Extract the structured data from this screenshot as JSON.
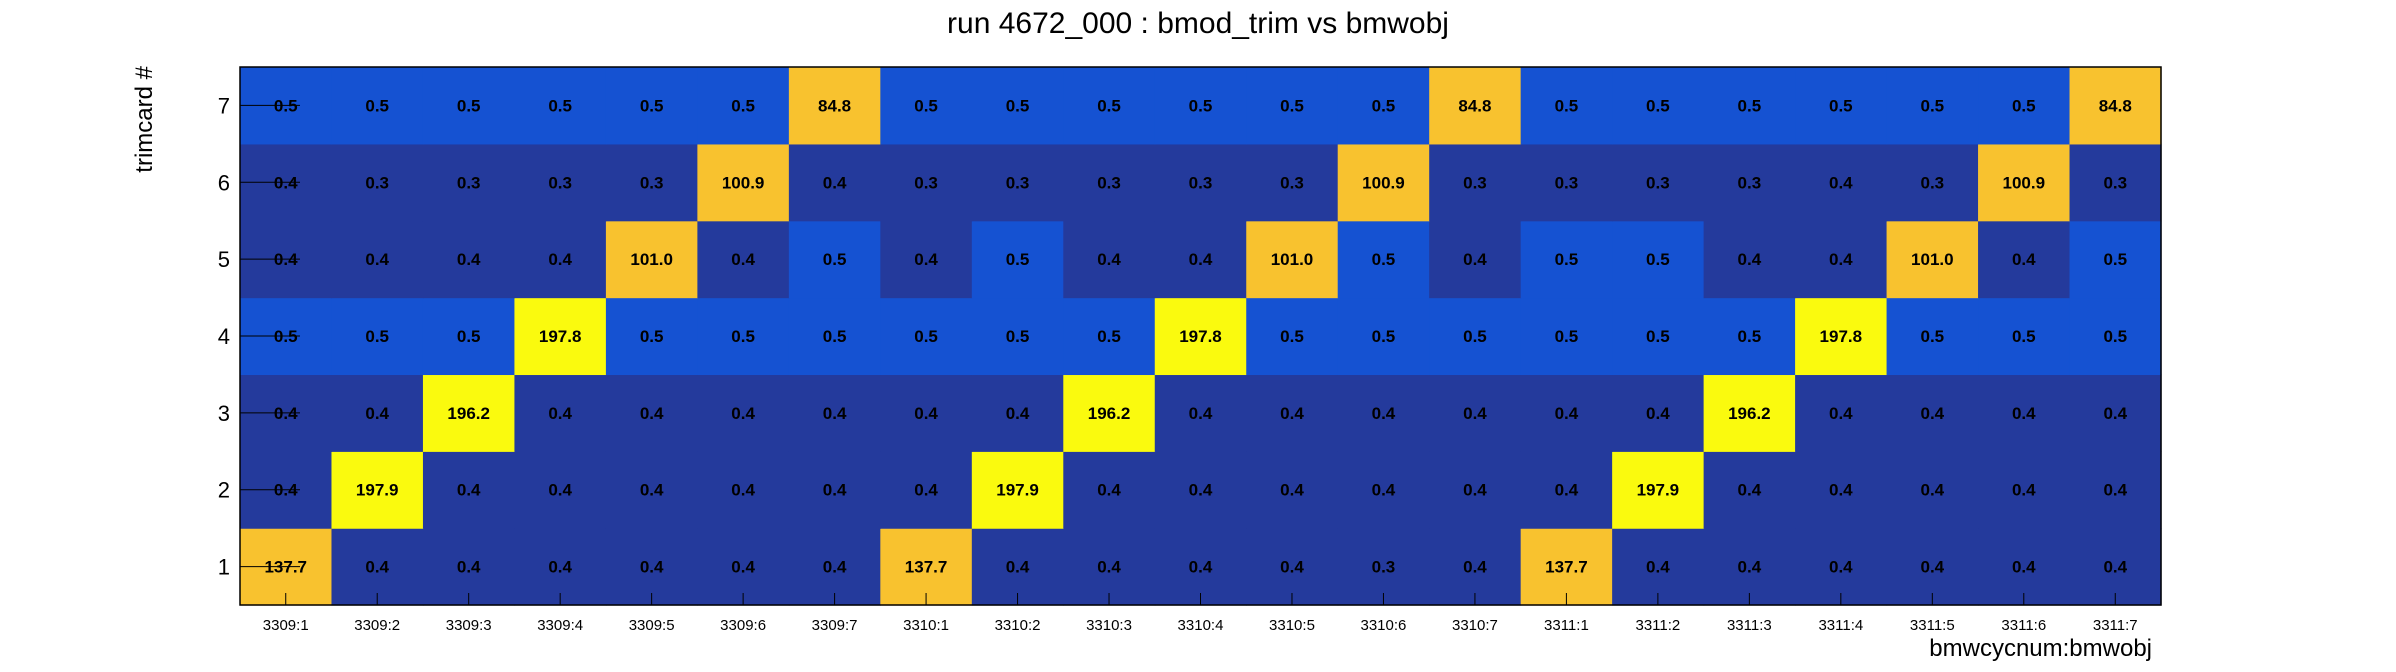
{
  "chart_data": {
    "type": "heatmap",
    "title": "run 4672_000 : bmod_trim vs bmwobj",
    "xlabel": "bmwcycnum:bmwobj",
    "ylabel": "trimcard #",
    "x_categories": [
      "3309:1",
      "3309:2",
      "3309:3",
      "3309:4",
      "3309:5",
      "3309:6",
      "3309:7",
      "3310:1",
      "3310:2",
      "3310:3",
      "3310:4",
      "3310:5",
      "3310:6",
      "3310:7",
      "3311:1",
      "3311:2",
      "3311:3",
      "3311:4",
      "3311:5",
      "3311:6",
      "3311:7"
    ],
    "y_categories": [
      "1",
      "2",
      "3",
      "4",
      "5",
      "6",
      "7"
    ],
    "values": [
      [
        "137.7",
        "0.4",
        "0.4",
        "0.4",
        "0.4",
        "0.4",
        "0.4",
        "137.7",
        "0.4",
        "0.4",
        "0.4",
        "0.4",
        "0.3",
        "0.4",
        "137.7",
        "0.4",
        "0.4",
        "0.4",
        "0.4",
        "0.4",
        "0.4"
      ],
      [
        "0.4",
        "197.9",
        "0.4",
        "0.4",
        "0.4",
        "0.4",
        "0.4",
        "0.4",
        "197.9",
        "0.4",
        "0.4",
        "0.4",
        "0.4",
        "0.4",
        "0.4",
        "197.9",
        "0.4",
        "0.4",
        "0.4",
        "0.4",
        "0.4"
      ],
      [
        "0.4",
        "0.4",
        "196.2",
        "0.4",
        "0.4",
        "0.4",
        "0.4",
        "0.4",
        "0.4",
        "196.2",
        "0.4",
        "0.4",
        "0.4",
        "0.4",
        "0.4",
        "0.4",
        "196.2",
        "0.4",
        "0.4",
        "0.4",
        "0.4"
      ],
      [
        "0.5",
        "0.5",
        "0.5",
        "197.8",
        "0.5",
        "0.5",
        "0.5",
        "0.5",
        "0.5",
        "0.5",
        "197.8",
        "0.5",
        "0.5",
        "0.5",
        "0.5",
        "0.5",
        "0.5",
        "197.8",
        "0.5",
        "0.5",
        "0.5"
      ],
      [
        "0.4",
        "0.4",
        "0.4",
        "0.4",
        "101.0",
        "0.4",
        "0.5",
        "0.4",
        "0.5",
        "0.4",
        "0.4",
        "101.0",
        "0.5",
        "0.4",
        "0.5",
        "0.5",
        "0.4",
        "0.4",
        "101.0",
        "0.4",
        "0.5"
      ],
      [
        "0.4",
        "0.3",
        "0.3",
        "0.3",
        "0.3",
        "100.9",
        "0.4",
        "0.3",
        "0.3",
        "0.3",
        "0.3",
        "0.3",
        "100.9",
        "0.3",
        "0.3",
        "0.3",
        "0.3",
        "0.4",
        "0.3",
        "100.9",
        "0.3"
      ],
      [
        "0.5",
        "0.5",
        "0.5",
        "0.5",
        "0.5",
        "0.5",
        "84.8",
        "0.5",
        "0.5",
        "0.5",
        "0.5",
        "0.5",
        "0.5",
        "84.8",
        "0.5",
        "0.5",
        "0.5",
        "0.5",
        "0.5",
        "0.5",
        "84.8"
      ]
    ],
    "colors": {
      "low_dark": "#243a9c",
      "low_bright": "#1552d2",
      "orange": "#f8c22f",
      "yellow": "#fafa0e"
    },
    "grid": false,
    "legend": "none"
  }
}
